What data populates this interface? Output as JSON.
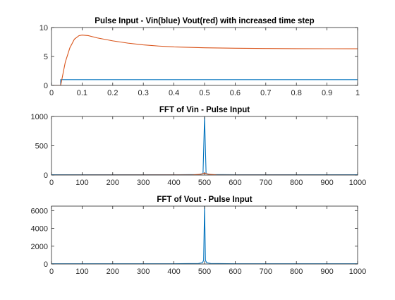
{
  "colors": {
    "blue": "#0072BD",
    "red": "#D95319",
    "axis": "#262626",
    "background": "#ffffff"
  },
  "chart_data": [
    {
      "type": "line",
      "title": "Pulse Input - Vin(blue) Vout(red) with increased time step",
      "xlabel": "",
      "ylabel": "",
      "xlim": [
        0,
        1
      ],
      "ylim": [
        0,
        10
      ],
      "xticks": [
        "0",
        "0.1",
        "0.2",
        "0.3",
        "0.4",
        "0.5",
        "0.6",
        "0.7",
        "0.8",
        "0.9",
        "1"
      ],
      "yticks": [
        "0",
        "5",
        "10"
      ],
      "series": [
        {
          "color": "#0072BD",
          "points": [
            [
              0,
              0
            ],
            [
              0.03,
              0
            ],
            [
              0.03,
              1
            ],
            [
              1,
              1
            ]
          ]
        },
        {
          "color": "#D95319",
          "points": [
            [
              0,
              0
            ],
            [
              0.03,
              0
            ],
            [
              0.045,
              4.0
            ],
            [
              0.06,
              6.5
            ],
            [
              0.075,
              8.0
            ],
            [
              0.09,
              8.6
            ],
            [
              0.1,
              8.7
            ],
            [
              0.12,
              8.6
            ],
            [
              0.15,
              8.2
            ],
            [
              0.2,
              7.7
            ],
            [
              0.25,
              7.3
            ],
            [
              0.3,
              7.0
            ],
            [
              0.35,
              6.8
            ],
            [
              0.4,
              6.65
            ],
            [
              0.5,
              6.5
            ],
            [
              0.6,
              6.42
            ],
            [
              0.7,
              6.38
            ],
            [
              0.8,
              6.35
            ],
            [
              0.9,
              6.34
            ],
            [
              1,
              6.33
            ]
          ]
        }
      ]
    },
    {
      "type": "line",
      "title": "FFT of Vin - Pulse Input",
      "xlabel": "",
      "ylabel": "",
      "xlim": [
        0,
        1000
      ],
      "ylim": [
        0,
        1000
      ],
      "xticks": [
        "0",
        "100",
        "200",
        "300",
        "400",
        "500",
        "600",
        "700",
        "800",
        "900",
        "1000"
      ],
      "yticks": [
        "0",
        "500",
        "1000"
      ],
      "series": [
        {
          "color": "#0072BD",
          "points": [
            [
              0,
              5
            ],
            [
              100,
              5
            ],
            [
              200,
              5
            ],
            [
              300,
              5
            ],
            [
              400,
              5
            ],
            [
              480,
              8
            ],
            [
              495,
              25
            ],
            [
              500,
              1000
            ],
            [
              505,
              25
            ],
            [
              520,
              8
            ],
            [
              600,
              5
            ],
            [
              700,
              5
            ],
            [
              800,
              5
            ],
            [
              900,
              5
            ],
            [
              1000,
              5
            ]
          ]
        },
        {
          "color": "#D95319",
          "points": [
            [
              0,
              0
            ],
            [
              460,
              2
            ],
            [
              490,
              15
            ],
            [
              500,
              35
            ],
            [
              510,
              15
            ],
            [
              540,
              2
            ],
            [
              1000,
              0
            ]
          ]
        }
      ]
    },
    {
      "type": "line",
      "title": "FFT of Vout - Pulse Input",
      "xlabel": "",
      "ylabel": "",
      "xlim": [
        0,
        1000
      ],
      "ylim": [
        0,
        6500
      ],
      "xticks": [
        "0",
        "100",
        "200",
        "300",
        "400",
        "500",
        "600",
        "700",
        "800",
        "900",
        "1000"
      ],
      "yticks": [
        "0",
        "2000",
        "4000",
        "6000"
      ],
      "series": [
        {
          "color": "#0072BD",
          "points": [
            [
              0,
              30
            ],
            [
              100,
              30
            ],
            [
              200,
              30
            ],
            [
              300,
              30
            ],
            [
              400,
              30
            ],
            [
              480,
              60
            ],
            [
              493,
              150
            ],
            [
              497,
              400
            ],
            [
              500,
              6500
            ],
            [
              503,
              400
            ],
            [
              507,
              150
            ],
            [
              520,
              60
            ],
            [
              600,
              30
            ],
            [
              700,
              30
            ],
            [
              800,
              30
            ],
            [
              900,
              30
            ],
            [
              1000,
              30
            ]
          ]
        }
      ]
    }
  ]
}
